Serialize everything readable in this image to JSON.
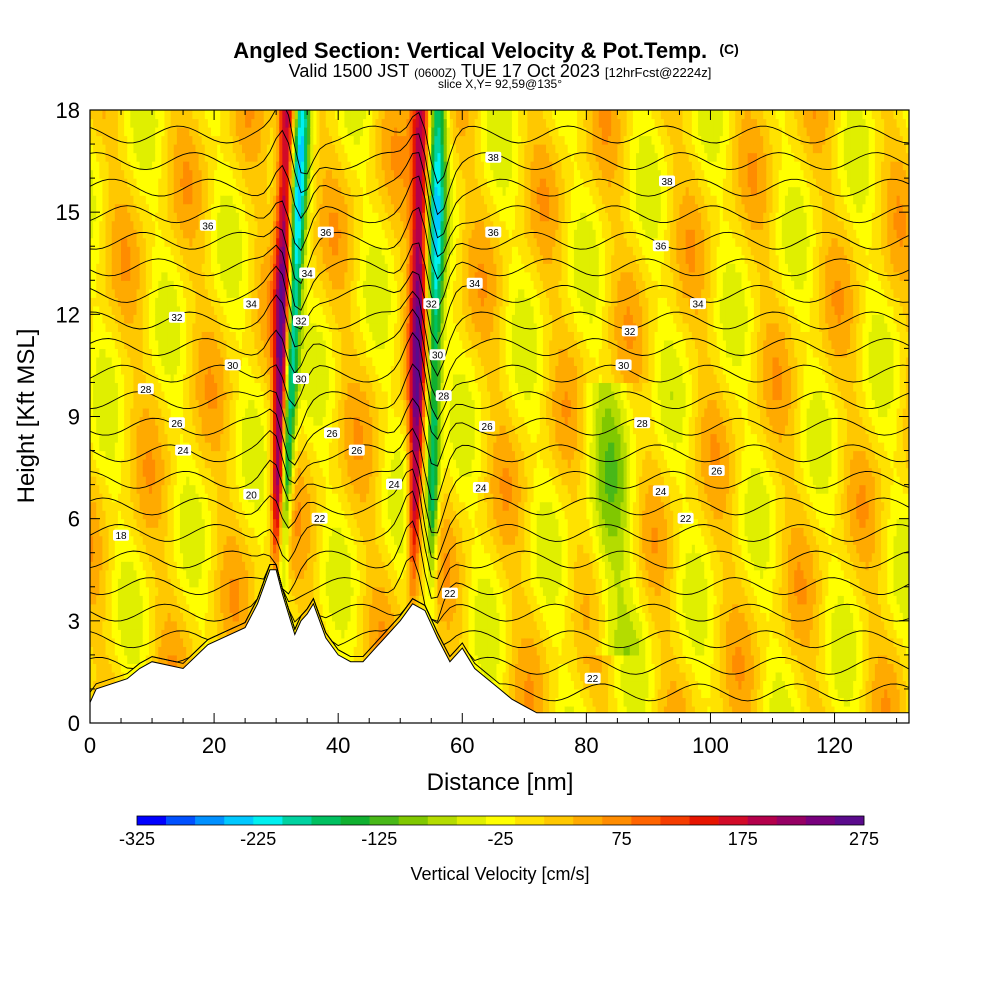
{
  "header": {
    "title": "Angled Section: Vertical Velocity & Pot.Temp.",
    "title_suffix": "(C)",
    "valid_prefix": "Valid 1500 JST",
    "valid_utc": "(0600Z)",
    "valid_date": "TUE 17 Oct 2023",
    "forecast": "[12hrFcst@2224z]",
    "slice": "slice X,Y= 92,59@135°"
  },
  "chart_data": {
    "type": "heatmap",
    "xlabel": "Distance [nm]",
    "ylabel": "Height [Kft MSL]",
    "xlim": [
      0,
      132
    ],
    "ylim": [
      0,
      18
    ],
    "xticks": [
      0,
      20,
      40,
      60,
      80,
      100,
      120
    ],
    "yticks": [
      0,
      3,
      6,
      9,
      12,
      15,
      18
    ],
    "field": "Vertical Velocity",
    "colorbar": {
      "label": "Vertical Velocity [cm/s]",
      "min": -325,
      "max": 275,
      "step": 25,
      "tick_labels": [
        -325,
        -225,
        -125,
        -25,
        75,
        175,
        275
      ],
      "colors": [
        "#0000ff",
        "#0050ff",
        "#0090ff",
        "#00c8ff",
        "#00f0f0",
        "#00d2a0",
        "#00c060",
        "#10b030",
        "#48b818",
        "#80c800",
        "#b4dc00",
        "#e0ef00",
        "#ffff00",
        "#ffe200",
        "#ffc800",
        "#ffaa00",
        "#ff8c00",
        "#ff6400",
        "#f53c00",
        "#e61400",
        "#d20a28",
        "#b4004b",
        "#960064",
        "#78007d",
        "#5a0a8c"
      ]
    },
    "features": [
      {
        "kind": "updraft_band",
        "x_bottom": 30,
        "z_bottom": 4.5,
        "x_top": 32,
        "z_top": 18,
        "peak": 275
      },
      {
        "kind": "downdraft_band",
        "x_bottom": 31,
        "z_bottom": 4.5,
        "x_top": 34,
        "z_top": 18,
        "peak": -250
      },
      {
        "kind": "updraft_band",
        "x_bottom": 52,
        "z_bottom": 3.5,
        "x_top": 53.5,
        "z_top": 18,
        "peak": 225
      },
      {
        "kind": "downdraft_band",
        "x_bottom": 55,
        "z_bottom": 3.5,
        "x_top": 56,
        "z_top": 18,
        "peak": -200
      },
      {
        "kind": "weak_down_trough",
        "x": 84,
        "z_bottom": 2,
        "z_top": 10
      }
    ],
    "terrain_kft": {
      "x": [
        0,
        1,
        6,
        8,
        10,
        15,
        19,
        25,
        27,
        29,
        30,
        31,
        32,
        33,
        34,
        35,
        36,
        37,
        38,
        40,
        42,
        44,
        46,
        48,
        50,
        52,
        54,
        56,
        58,
        60,
        62,
        64,
        66,
        68,
        70,
        72,
        132
      ],
      "z": [
        0.6,
        1.0,
        1.3,
        1.6,
        1.8,
        1.6,
        2.3,
        2.8,
        3.5,
        4.5,
        4.5,
        3.8,
        3.2,
        2.6,
        3.0,
        3.2,
        3.5,
        3.0,
        2.5,
        2.0,
        1.8,
        1.8,
        2.2,
        2.6,
        3.0,
        3.5,
        3.3,
        2.5,
        1.8,
        2.2,
        1.6,
        1.3,
        1.0,
        0.7,
        0.5,
        0.3,
        0.3
      ]
    },
    "contours": {
      "variable": "Pot.Temp.",
      "labels": [
        {
          "text": "18",
          "x": 5,
          "z": 5.5
        },
        {
          "text": "20",
          "x": 26,
          "z": 6.7
        },
        {
          "text": "22",
          "x": 37,
          "z": 6.0
        },
        {
          "text": "22",
          "x": 96,
          "z": 6.0
        },
        {
          "text": "22",
          "x": 81,
          "z": 1.3
        },
        {
          "text": "22",
          "x": 58,
          "z": 3.8
        },
        {
          "text": "24",
          "x": 15,
          "z": 8.0
        },
        {
          "text": "24",
          "x": 49,
          "z": 7.0
        },
        {
          "text": "24",
          "x": 63,
          "z": 6.9
        },
        {
          "text": "24",
          "x": 92,
          "z": 6.8
        },
        {
          "text": "26",
          "x": 14,
          "z": 8.8
        },
        {
          "text": "26",
          "x": 39,
          "z": 8.5
        },
        {
          "text": "26",
          "x": 43,
          "z": 8.0
        },
        {
          "text": "26",
          "x": 64,
          "z": 8.7
        },
        {
          "text": "26",
          "x": 101,
          "z": 7.4
        },
        {
          "text": "28",
          "x": 9,
          "z": 9.8
        },
        {
          "text": "28",
          "x": 57,
          "z": 9.6
        },
        {
          "text": "28",
          "x": 89,
          "z": 8.8
        },
        {
          "text": "30",
          "x": 23,
          "z": 10.5
        },
        {
          "text": "30",
          "x": 34,
          "z": 10.1
        },
        {
          "text": "30",
          "x": 56,
          "z": 10.8
        },
        {
          "text": "30",
          "x": 86,
          "z": 10.5
        },
        {
          "text": "32",
          "x": 14,
          "z": 11.9
        },
        {
          "text": "32",
          "x": 34,
          "z": 11.8
        },
        {
          "text": "32",
          "x": 55,
          "z": 12.3
        },
        {
          "text": "32",
          "x": 87,
          "z": 11.5
        },
        {
          "text": "34",
          "x": 26,
          "z": 12.3
        },
        {
          "text": "34",
          "x": 35,
          "z": 13.2
        },
        {
          "text": "34",
          "x": 62,
          "z": 12.9
        },
        {
          "text": "34",
          "x": 98,
          "z": 12.3
        },
        {
          "text": "36",
          "x": 19,
          "z": 14.6
        },
        {
          "text": "36",
          "x": 38,
          "z": 14.4
        },
        {
          "text": "36",
          "x": 65,
          "z": 14.4
        },
        {
          "text": "36",
          "x": 92,
          "z": 14.0
        },
        {
          "text": "38",
          "x": 65,
          "z": 16.6
        },
        {
          "text": "38",
          "x": 93,
          "z": 15.9
        }
      ]
    }
  }
}
